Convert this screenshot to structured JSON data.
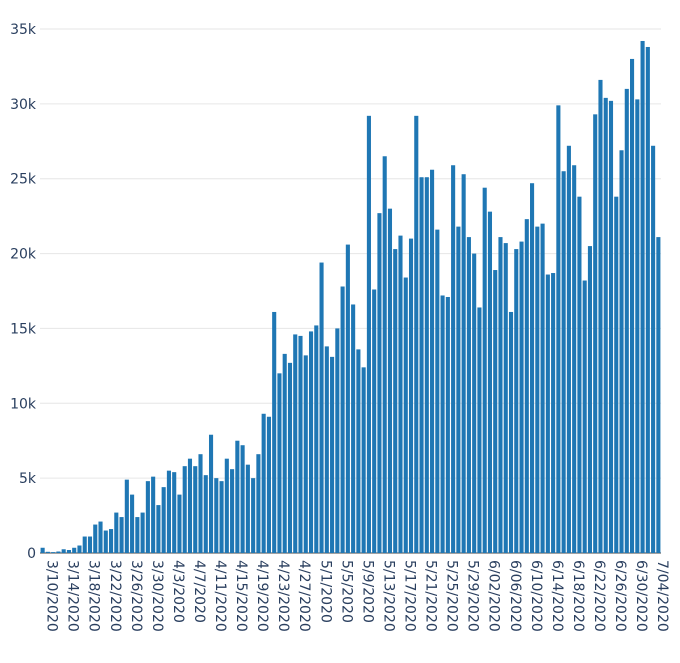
{
  "chart_data": {
    "type": "bar",
    "title": "",
    "xlabel": "",
    "ylabel": "",
    "ylim": [
      0,
      35000
    ],
    "grid": true,
    "bar_color": "#1f77b4",
    "y_ticks": [
      {
        "value": 0,
        "label": "0"
      },
      {
        "value": 5000,
        "label": "5k"
      },
      {
        "value": 10000,
        "label": "10k"
      },
      {
        "value": 15000,
        "label": "15k"
      },
      {
        "value": 20000,
        "label": "20k"
      },
      {
        "value": 25000,
        "label": "25k"
      },
      {
        "value": 30000,
        "label": "30k"
      },
      {
        "value": 35000,
        "label": "35k"
      }
    ],
    "x_tick_labels": [
      "3/10/2020",
      "3/14/2020",
      "3/18/2020",
      "3/22/2020",
      "3/26/2020",
      "3/30/2020",
      "4/3/2020",
      "4/7/2020",
      "4/11/2020",
      "4/15/2020",
      "4/19/2020",
      "4/23/2020",
      "4/27/2020",
      "5/1/2020",
      "5/5/2020",
      "5/9/2020",
      "5/13/2020",
      "5/17/2020",
      "5/21/2020",
      "5/25/2020",
      "5/29/2020",
      "6/02/2020",
      "6/06/2020",
      "6/10/2020",
      "6/14/2020",
      "6/18/2020",
      "6/22/2020",
      "6/26/2020",
      "6/30/2020",
      "7/04/2020"
    ],
    "values": [
      350,
      80,
      60,
      100,
      250,
      200,
      350,
      500,
      1100,
      1100,
      1900,
      2100,
      1500,
      1600,
      2700,
      2400,
      4900,
      3900,
      2400,
      2700,
      4800,
      5100,
      3200,
      4400,
      5500,
      5400,
      3900,
      5800,
      6300,
      5800,
      6600,
      5200,
      7900,
      5000,
      4800,
      6300,
      5600,
      7500,
      7200,
      5900,
      5000,
      6600,
      9300,
      9100,
      16100,
      12000,
      13300,
      12700,
      14600,
      14500,
      13200,
      14800,
      15200,
      19400,
      13800,
      13100,
      15000,
      17800,
      20600,
      16600,
      13600,
      12400,
      29200,
      17600,
      22700,
      26500,
      23000,
      20300,
      21200,
      18400,
      21000,
      29200,
      25100,
      25100,
      25600,
      21600,
      17200,
      17100,
      25900,
      21800,
      25300,
      21100,
      20000,
      16400,
      24400,
      22800,
      18900,
      21100,
      20700,
      16100,
      20300,
      20800,
      22300,
      24700,
      21800,
      22000,
      18600,
      18700,
      29900,
      25500,
      27200,
      25900,
      23800,
      18200,
      20500,
      29300,
      31600,
      30400,
      30200,
      23800,
      26900,
      31000,
      33000,
      30300,
      34200,
      33800,
      27200,
      21100
    ]
  }
}
